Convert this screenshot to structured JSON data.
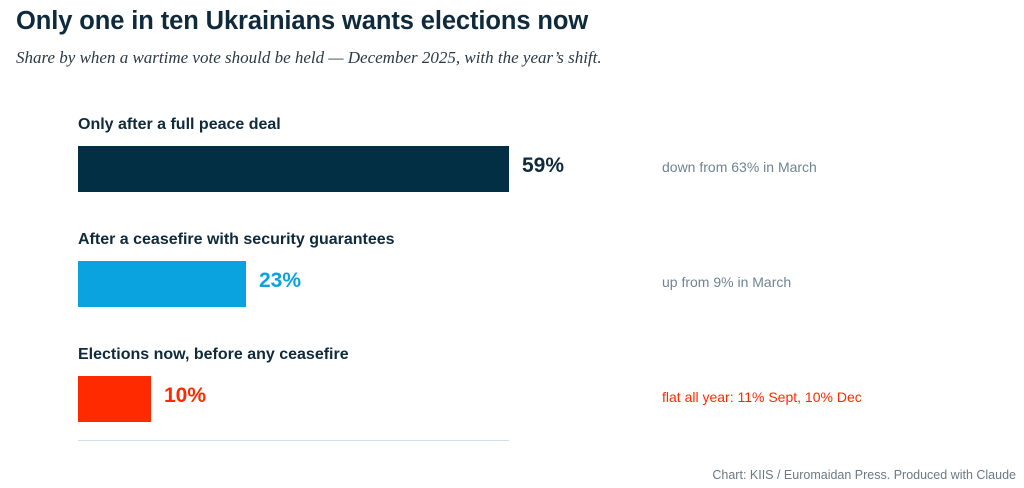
{
  "title": "Only one in ten Ukrainians wants elections now",
  "subtitle": "Share by when a wartime vote should be held — December 2025, with the year’s shift.",
  "source": "Chart: KIIS / Euromaidan Press. Produced with Claude",
  "colors": {
    "title": "#0e2a3c",
    "baseline": "#cfe0e8",
    "source": "#6b7a84"
  },
  "chart_data": {
    "type": "bar",
    "orientation": "horizontal",
    "categories": [
      "Only after a full peace deal",
      "After a ceasefire with security guarantees",
      "Elections now, before any ceasefire"
    ],
    "values": [
      59,
      23,
      10
    ],
    "value_labels": [
      "59%",
      "23%",
      "10%"
    ],
    "notes": [
      "down from 63% in March",
      "up from 9% in March",
      "flat all year: 11% Sept, 10% Dec"
    ],
    "bar_colors": [
      "#022f44",
      "#0aa3e0",
      "#ff2a00"
    ],
    "value_label_colors": [
      "#0e2a3c",
      "#0aa3e0",
      "#ff2a00"
    ],
    "note_colors": [
      "#6f8591",
      "#6f8591",
      "#ff2a00"
    ],
    "xlim": [
      0,
      59
    ],
    "grid": false,
    "legend": "none"
  }
}
